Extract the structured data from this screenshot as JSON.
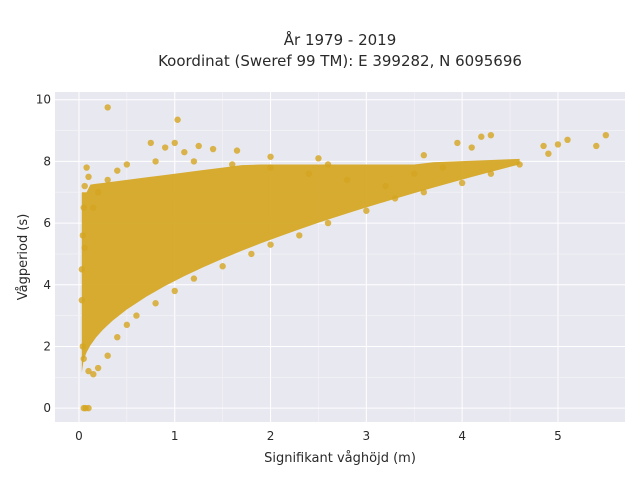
{
  "chart_data": {
    "type": "scatter",
    "title_line1": "År 1979 - 2019",
    "title_line2": "Koordinat (Sweref 99 TM): E 399282, N 6095696",
    "xlabel": "Signifikant våghöjd (m)",
    "ylabel": "Vågperiod (s)",
    "xlim": [
      -0.25,
      5.7
    ],
    "ylim": [
      -0.45,
      10.25
    ],
    "xticks": [
      0,
      1,
      2,
      3,
      4,
      5
    ],
    "yticks": [
      0,
      2,
      4,
      6,
      8,
      10
    ],
    "xtick_labels": [
      "0",
      "1",
      "2",
      "3",
      "4",
      "5"
    ],
    "ytick_labels": [
      "0",
      "2",
      "4",
      "6",
      "8",
      "10"
    ],
    "grid": true,
    "marker_color": "#D4A520",
    "background_color": "#E8E8F0",
    "series": [
      {
        "points": [
          [
            0.05,
            0.0
          ],
          [
            0.07,
            0.0
          ],
          [
            0.1,
            0.0
          ],
          [
            0.3,
            9.75
          ],
          [
            1.03,
            9.35
          ],
          [
            1.0,
            8.6
          ],
          [
            0.75,
            8.6
          ],
          [
            0.9,
            8.45
          ],
          [
            1.1,
            8.3
          ],
          [
            1.25,
            8.5
          ],
          [
            1.4,
            8.4
          ],
          [
            1.65,
            8.35
          ],
          [
            2.0,
            8.15
          ],
          [
            5.5,
            8.85
          ],
          [
            5.4,
            8.5
          ],
          [
            5.1,
            8.7
          ],
          [
            5.0,
            8.55
          ],
          [
            4.85,
            8.5
          ],
          [
            4.9,
            8.25
          ],
          [
            4.2,
            8.8
          ],
          [
            4.3,
            8.85
          ],
          [
            3.95,
            8.6
          ],
          [
            4.1,
            8.45
          ],
          [
            3.6,
            8.2
          ],
          [
            2.5,
            8.1
          ],
          [
            2.6,
            7.9
          ],
          [
            0.08,
            7.8
          ],
          [
            0.1,
            7.5
          ],
          [
            0.06,
            7.2
          ],
          [
            0.05,
            6.5
          ],
          [
            0.04,
            5.6
          ],
          [
            0.06,
            5.2
          ],
          [
            0.03,
            4.5
          ],
          [
            0.03,
            3.5
          ],
          [
            0.04,
            2.0
          ],
          [
            0.05,
            1.6
          ],
          [
            0.1,
            1.2
          ],
          [
            0.15,
            1.1
          ],
          [
            0.2,
            1.3
          ],
          [
            0.3,
            1.7
          ],
          [
            0.4,
            2.3
          ],
          [
            0.5,
            2.7
          ],
          [
            0.6,
            3.0
          ],
          [
            0.8,
            3.4
          ],
          [
            1.0,
            3.8
          ],
          [
            1.2,
            4.2
          ],
          [
            1.5,
            4.6
          ],
          [
            1.8,
            5.0
          ],
          [
            2.0,
            5.3
          ],
          [
            2.3,
            5.6
          ],
          [
            2.6,
            6.0
          ],
          [
            3.0,
            6.4
          ],
          [
            3.3,
            6.8
          ],
          [
            3.6,
            7.0
          ],
          [
            4.0,
            7.3
          ],
          [
            4.3,
            7.6
          ],
          [
            4.6,
            7.9
          ],
          [
            3.2,
            7.2
          ],
          [
            3.5,
            7.6
          ],
          [
            3.8,
            7.8
          ],
          [
            2.8,
            7.4
          ],
          [
            2.4,
            7.6
          ],
          [
            2.0,
            7.8
          ],
          [
            1.6,
            7.9
          ],
          [
            1.2,
            8.0
          ],
          [
            0.8,
            8.0
          ],
          [
            0.5,
            7.9
          ],
          [
            0.4,
            7.7
          ],
          [
            0.3,
            7.4
          ],
          [
            0.2,
            7.0
          ],
          [
            0.15,
            6.5
          ]
        ]
      }
    ]
  }
}
